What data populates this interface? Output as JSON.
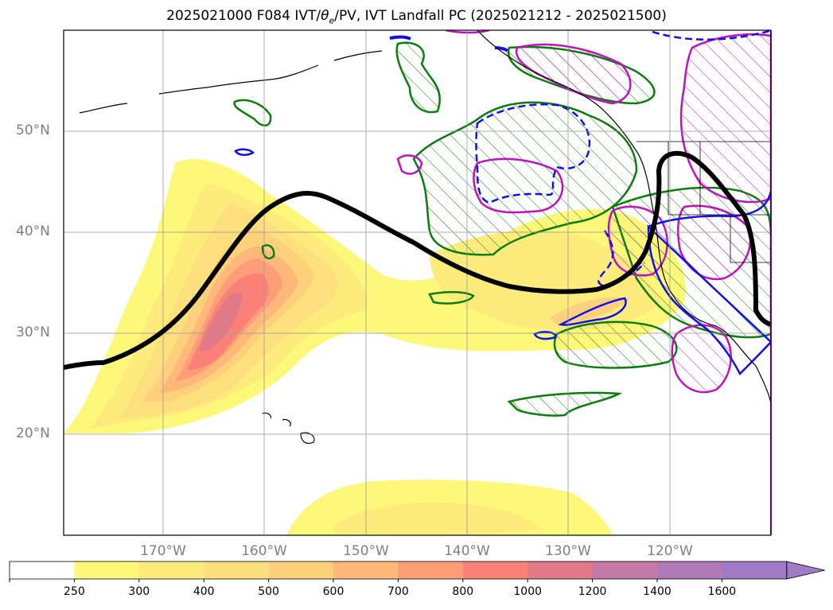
{
  "title": {
    "prefix": "2025021000 F084 IVT/",
    "theta": "θ",
    "theta_sub": "e",
    "suffix": "/PV, IVT Landfall PC (2025021212 - 2025021500)"
  },
  "lat_labels": [
    "50°N",
    "40°N",
    "30°N",
    "20°N"
  ],
  "lon_labels": [
    "170°W",
    "160°W",
    "150°W",
    "140°W",
    "130°W",
    "120°W"
  ],
  "colorbar": {
    "ticks": [
      "250",
      "300",
      "400",
      "500",
      "600",
      "700",
      "800",
      "1000",
      "1200",
      "1400",
      "1600"
    ],
    "colors": [
      "#ffffff",
      "#fdf87a",
      "#fdeb7c",
      "#fde07d",
      "#fdd07c",
      "#fdb87a",
      "#fd9e79",
      "#fb8077",
      "#e07a88",
      "#c47aa6",
      "#b07ab8",
      "#a07cc8"
    ]
  },
  "contour_colors": {
    "ivt_core": "#000000",
    "green": "#0a7d0a",
    "blue": "#1010ee",
    "magenta": "#c010c0"
  }
}
